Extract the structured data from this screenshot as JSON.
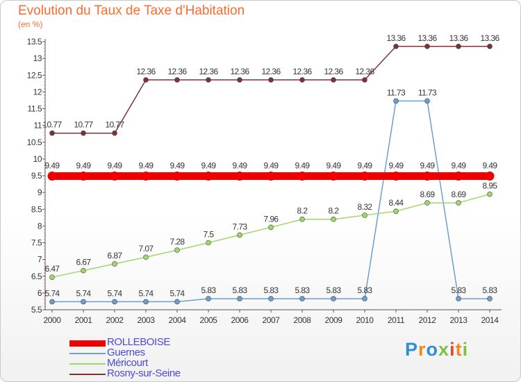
{
  "chart_data": {
    "type": "line",
    "title": "Evolution du Taux de Taxe d'Habitation",
    "subtitle": "(en %)",
    "categories": [
      "2000",
      "2001",
      "2002",
      "2003",
      "2004",
      "2005",
      "2006",
      "2007",
      "2008",
      "2009",
      "2010",
      "2011",
      "2012",
      "2013",
      "2014"
    ],
    "ylim": [
      5.5,
      13.5
    ],
    "yticks": [
      "5.5",
      "6",
      "6.5",
      "7",
      "7.5",
      "8",
      "8.5",
      "9",
      "9.5",
      "10",
      "10.5",
      "11",
      "11.5",
      "12",
      "12.5",
      "13",
      "13.5"
    ],
    "grid": false,
    "legend_position": "bottom-left",
    "series": [
      {
        "name": "ROLLEBOISE",
        "color": "#ee0000",
        "values": [
          9.49,
          9.49,
          9.49,
          9.49,
          9.49,
          9.49,
          9.49,
          9.49,
          9.49,
          9.49,
          9.49,
          9.49,
          9.49,
          9.49,
          9.49
        ],
        "labels": [
          "9.49",
          "9.49",
          "9.49",
          "9.49",
          "9.49",
          "9.49",
          "9.49",
          "9.49",
          "9.49",
          "9.49",
          "9.49",
          "9.49",
          "9.49",
          "9.49",
          "9.49"
        ]
      },
      {
        "name": "Guernes",
        "color": "#6a9fd0",
        "values": [
          5.74,
          5.74,
          5.74,
          5.74,
          5.74,
          5.83,
          5.83,
          5.83,
          5.83,
          5.83,
          5.83,
          11.73,
          11.73,
          5.83,
          5.83
        ],
        "labels": [
          "5.74",
          "5.74",
          "5.74",
          "5.74",
          "5.74",
          "5.83",
          "5.83",
          "5.83",
          "5.83",
          "5.83",
          "5.83",
          "11.73",
          "11.73",
          "5.83",
          "5.83"
        ]
      },
      {
        "name": "Méricourt",
        "color": "#9ed86a",
        "values": [
          6.47,
          6.67,
          6.87,
          7.07,
          7.28,
          7.5,
          7.73,
          7.96,
          8.2,
          8.2,
          8.32,
          8.44,
          8.69,
          8.69,
          8.95
        ],
        "labels": [
          "6.47",
          "6.67",
          "6.87",
          "7.07",
          "7.28",
          "7.5",
          "7.73",
          "7.96",
          "8.2",
          "8.2",
          "8.32",
          "8.44",
          "8.69",
          "8.69",
          "8.95"
        ]
      },
      {
        "name": "Rosny-sur-Seine",
        "color": "#7a3434",
        "values": [
          10.77,
          10.77,
          10.77,
          12.36,
          12.36,
          12.36,
          12.36,
          12.36,
          12.36,
          12.36,
          12.36,
          13.36,
          13.36,
          13.36,
          13.36
        ],
        "labels": [
          "10.77",
          "10.77",
          "10.77",
          "12.36",
          "12.36",
          "12.36",
          "12.36",
          "12.36",
          "12.36",
          "12.36",
          "12.36",
          "13.36",
          "13.36",
          "13.36",
          "13.36"
        ]
      }
    ]
  },
  "logo": {
    "text": "Proxiti",
    "colors": [
      "#2f8fd6",
      "#f08a1c",
      "#7fc241",
      "#e8452c"
    ]
  }
}
